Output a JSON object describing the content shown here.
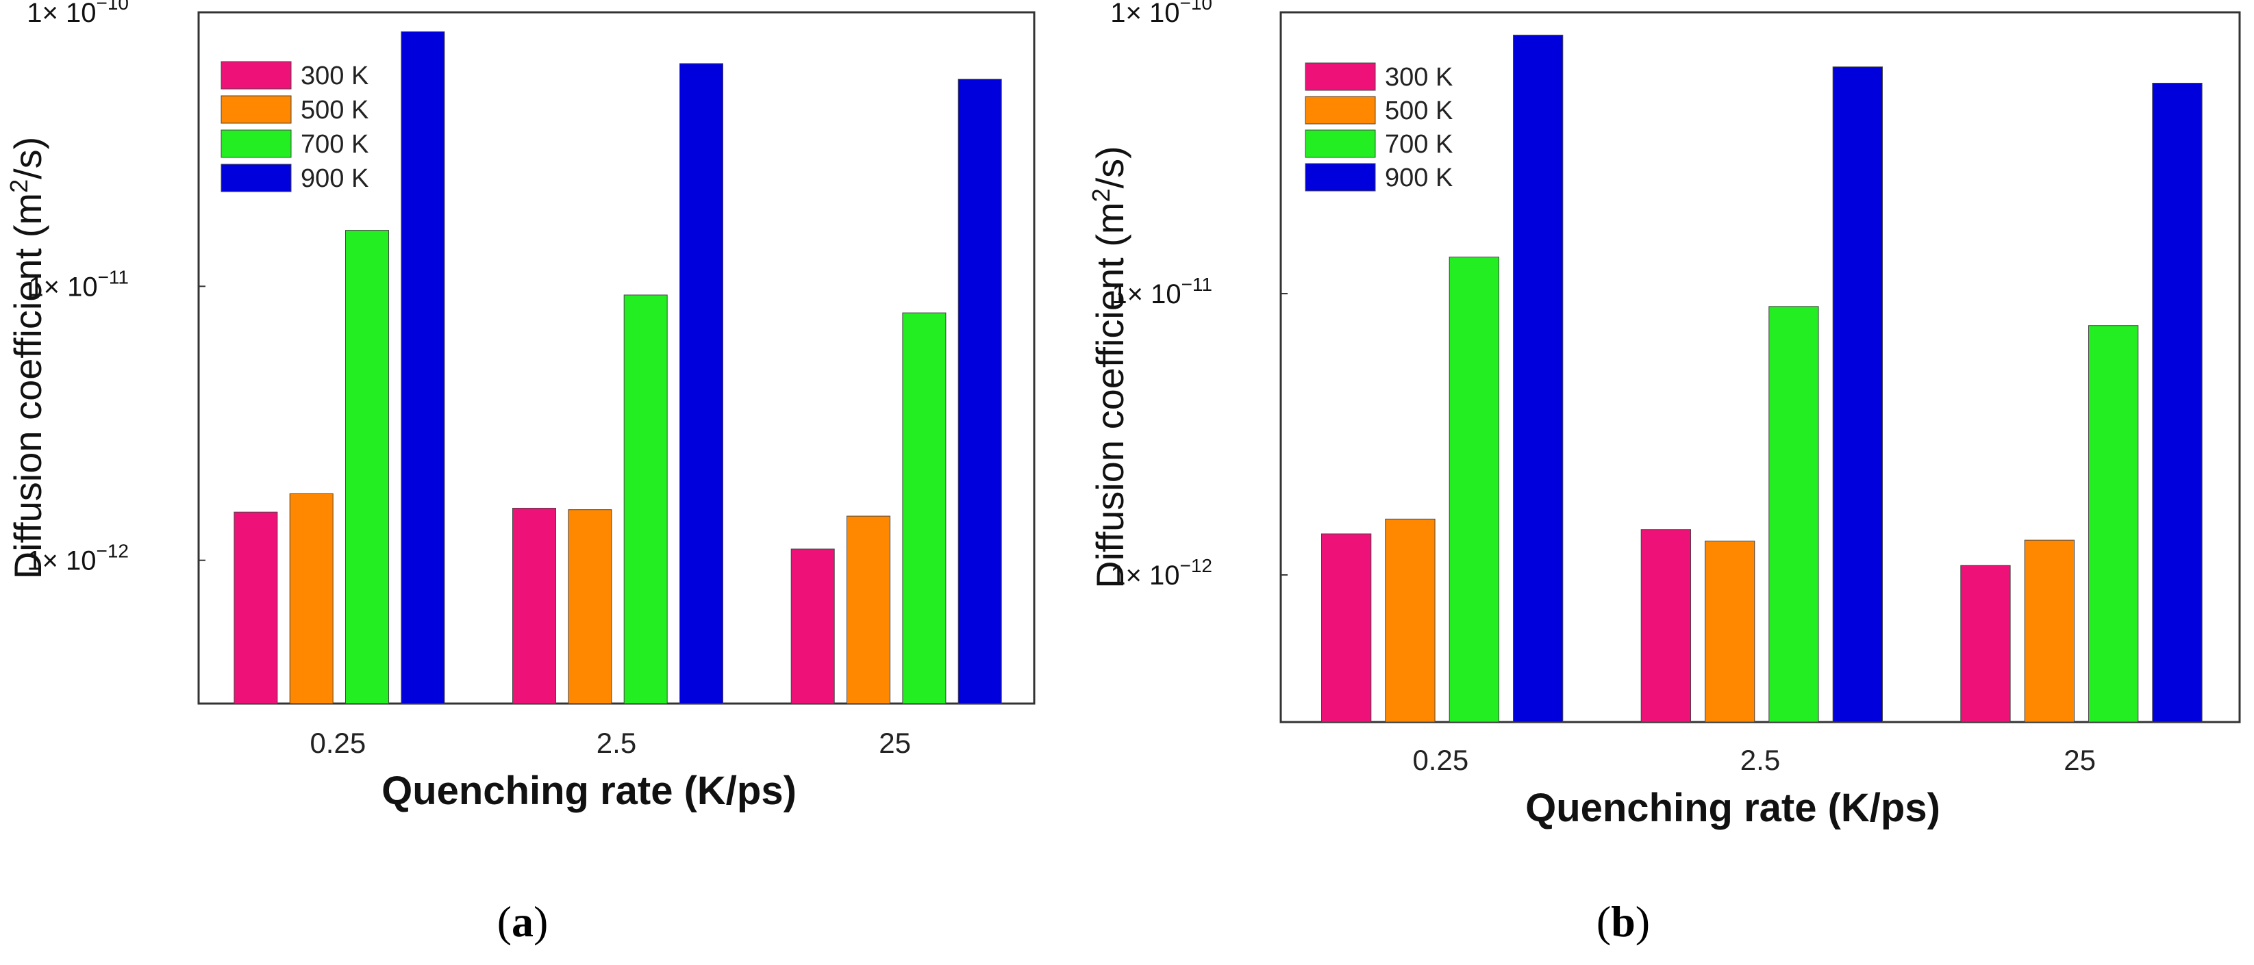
{
  "chart_data": [
    {
      "panel": "(a)",
      "type": "bar",
      "yscale": "log",
      "ylim": [
        3e-13,
        1e-10
      ],
      "ylabel": "Diffusion coefficient (m²/s)",
      "xlabel": "Quenching rate (K/ps)",
      "categories": [
        "0.25",
        "2.5",
        "25"
      ],
      "yticks": [
        {
          "value": 1e-10,
          "label": "10"
        },
        {
          "value": 1e-11,
          "label": "10"
        },
        {
          "value": 1e-12,
          "label": "10"
        }
      ],
      "series": [
        {
          "name": "300 K",
          "color": "#ee1177",
          "values": [
            1.5e-12,
            1.55e-12,
            1.1e-12
          ]
        },
        {
          "name": "500 K",
          "color": "#ff8800",
          "values": [
            1.75e-12,
            1.53e-12,
            1.45e-12
          ]
        },
        {
          "name": "700 K",
          "color": "#22ee22",
          "values": [
            1.6e-11,
            9.3e-12,
            8e-12
          ]
        },
        {
          "name": "900 K",
          "color": "#0000dd",
          "values": [
            8.5e-11,
            6.5e-11,
            5.7e-11
          ]
        }
      ]
    },
    {
      "panel": "(b)",
      "type": "bar",
      "yscale": "log",
      "ylim": [
        3e-13,
        1e-10
      ],
      "ylabel": "Diffusion coefficient (m²/s)",
      "xlabel": "Quenching rate (K/ps)",
      "categories": [
        "0.25",
        "2.5",
        "25"
      ],
      "yticks": [
        {
          "value": 1e-10,
          "label": "10"
        },
        {
          "value": 1e-11,
          "label": "10"
        },
        {
          "value": 1e-12,
          "label": "10"
        }
      ],
      "series": [
        {
          "name": "300 K",
          "color": "#ee1177",
          "values": [
            1.4e-12,
            1.45e-12,
            1.08e-12
          ]
        },
        {
          "name": "500 K",
          "color": "#ff8800",
          "values": [
            1.58e-12,
            1.32e-12,
            1.33e-12
          ]
        },
        {
          "name": "700 K",
          "color": "#22ee22",
          "values": [
            1.35e-11,
            9e-12,
            7.7e-12
          ]
        },
        {
          "name": "900 K",
          "color": "#0000dd",
          "values": [
            8.3e-11,
            6.4e-11,
            5.6e-11
          ]
        }
      ]
    }
  ],
  "labels": {
    "times": "1×",
    "ylabel_prefix": "Diffusion coefficient (m",
    "ylabel_sup": "2",
    "ylabel_suffix": "/s)"
  }
}
